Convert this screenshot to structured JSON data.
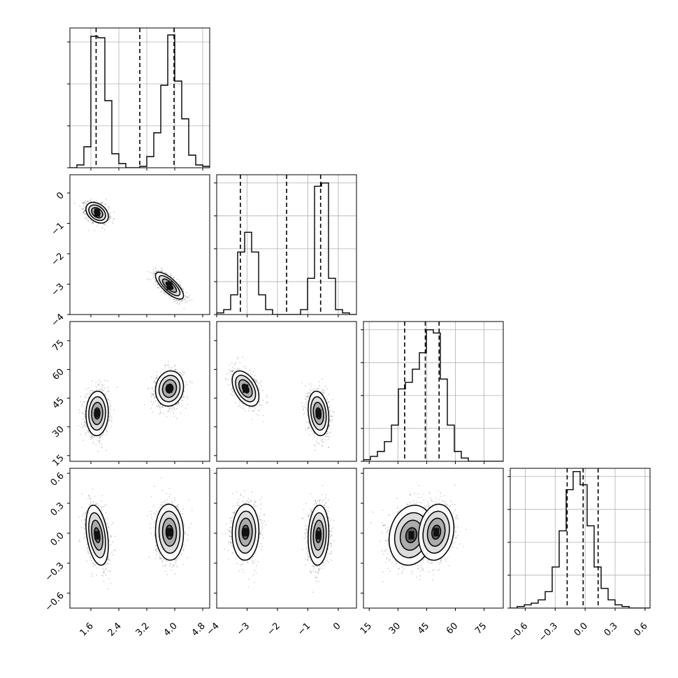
{
  "chart_data": {
    "type": "corner",
    "grid": true,
    "params": [
      {
        "range": [
          1.0,
          5.0
        ],
        "ticks": [
          1.6,
          2.4,
          3.2,
          4.0,
          4.8
        ],
        "tick_labels": [
          "1.6",
          "2.4",
          "3.2",
          "4.0",
          "4.8"
        ],
        "quantiles": [
          1.75,
          3.0,
          3.98
        ],
        "hist_edges_start": 1.0,
        "hist_edges_step": 0.2,
        "hist_values": [
          0,
          2,
          15,
          94,
          93,
          48,
          10,
          3,
          0,
          0,
          1,
          8,
          25,
          59,
          95,
          62,
          35,
          9,
          2,
          1
        ],
        "hist_ticks": [
          0,
          30,
          60,
          90
        ],
        "hist_ylim": [
          0,
          100
        ]
      },
      {
        "range": [
          -4.0,
          0.6
        ],
        "ticks": [
          -4,
          -3,
          -2,
          -1,
          0
        ],
        "tick_labels": [
          "−4",
          "−3",
          "−2",
          "−1",
          "0"
        ],
        "quantiles": [
          -3.22,
          -1.7,
          -0.58
        ],
        "hist_edges_start": -4.0,
        "hist_edges_step": 0.23,
        "hist_values": [
          1,
          3,
          12,
          38,
          50,
          38,
          12,
          3,
          0,
          0,
          0,
          0,
          3,
          22,
          78,
          80,
          22,
          3,
          1,
          0
        ],
        "hist_ticks": [
          0,
          20,
          40,
          60,
          80
        ],
        "hist_ylim": [
          0,
          85
        ]
      },
      {
        "range": [
          12,
          85
        ],
        "ticks": [
          15,
          30,
          45,
          60,
          75
        ],
        "tick_labels": [
          "15",
          "30",
          "45",
          "60",
          "75"
        ],
        "quantiles": [
          33.5,
          44.3,
          51.5
        ],
        "hist_edges_start": 12,
        "hist_edges_step": 3.65,
        "hist_values": [
          1,
          3,
          6,
          12,
          22,
          44,
          48,
          56,
          66,
          80,
          78,
          50,
          22,
          6,
          2,
          0,
          0,
          0,
          0,
          0
        ],
        "hist_ticks": [
          0,
          20,
          40,
          60,
          80
        ],
        "hist_ylim": [
          0,
          85
        ]
      },
      {
        "range": [
          -0.75,
          0.65
        ],
        "ticks": [
          -0.6,
          -0.3,
          0.0,
          0.3,
          0.6
        ],
        "tick_labels": [
          "−0.6",
          "−0.3",
          "0.0",
          "0.3",
          "0.6"
        ],
        "quantiles": [
          -0.18,
          -0.02,
          0.13
        ],
        "hist_edges_start": -0.75,
        "hist_edges_step": 0.07,
        "hist_values": [
          0,
          1,
          2,
          3,
          5,
          10,
          25,
          47,
          72,
          83,
          75,
          50,
          25,
          12,
          5,
          2,
          1,
          0,
          0,
          0
        ],
        "hist_ticks": [
          0,
          20,
          40,
          60,
          80
        ],
        "hist_ylim": [
          0,
          85
        ]
      }
    ],
    "clusters": [
      {
        "center": [
          1.78,
          -0.65,
          37.0,
          -0.02
        ],
        "sd": [
          0.16,
          0.17,
          5.8,
          0.15
        ]
      },
      {
        "center": [
          3.85,
          -3.05,
          50.0,
          0.01
        ],
        "sd": [
          0.2,
          0.22,
          4.6,
          0.14
        ]
      }
    ],
    "cluster_correlations": [
      {
        "pairs": [
          [
            0,
            1,
            -0.35
          ],
          [
            0,
            2,
            0.05
          ],
          [
            0,
            3,
            -0.35
          ],
          [
            1,
            2,
            -0.2
          ],
          [
            1,
            3,
            0.1
          ],
          [
            2,
            3,
            0.15
          ]
        ]
      },
      {
        "pairs": [
          [
            0,
            1,
            -0.75
          ],
          [
            0,
            2,
            0.1
          ],
          [
            0,
            3,
            -0.05
          ],
          [
            1,
            2,
            -0.45
          ],
          [
            1,
            3,
            0.05
          ],
          [
            2,
            3,
            0.15
          ]
        ]
      }
    ],
    "weights": [
      0.5,
      0.5
    ]
  }
}
